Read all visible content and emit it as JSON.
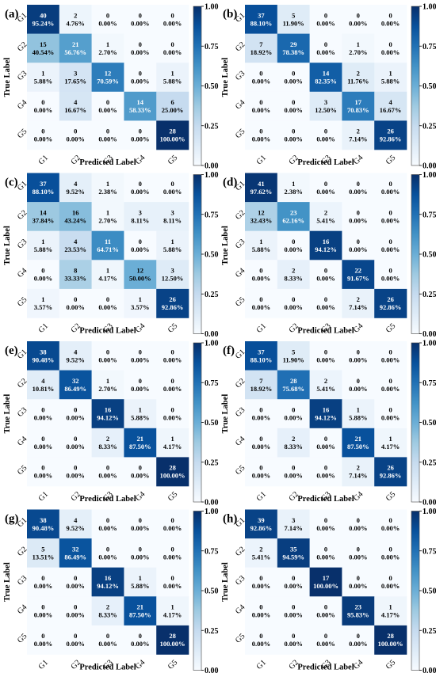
{
  "chart_data": [
    {
      "type": "heatmap",
      "panel_label": "(a)",
      "xlabel": "Predicted Label",
      "ylabel": "True Label",
      "x_categories": [
        "G1",
        "G2",
        "G3",
        "G4",
        "G5"
      ],
      "y_categories": [
        "G1",
        "G2",
        "G3",
        "G4",
        "G5"
      ],
      "counts": [
        [
          40,
          2,
          0,
          0,
          0
        ],
        [
          15,
          21,
          1,
          0,
          0
        ],
        [
          1,
          3,
          12,
          0,
          1
        ],
        [
          0,
          4,
          0,
          14,
          6
        ],
        [
          0,
          0,
          0,
          0,
          28
        ]
      ],
      "percentages": [
        [
          "95.24%",
          "4.76%",
          "0.00%",
          "0.00%",
          "0.00%"
        ],
        [
          "40.54%",
          "56.76%",
          "2.70%",
          "0.00%",
          "0.00%"
        ],
        [
          "5.88%",
          "17.65%",
          "70.59%",
          "0.00%",
          "5.88%"
        ],
        [
          "0.00%",
          "16.67%",
          "0.00%",
          "58.33%",
          "25.00%"
        ],
        [
          "0.00%",
          "0.00%",
          "0.00%",
          "0.00%",
          "100.00%"
        ]
      ],
      "colorbar": {
        "range": [
          0,
          1
        ],
        "ticks": [
          "0.00",
          "0.25",
          "0.50",
          "0.75",
          "1.00"
        ]
      }
    },
    {
      "type": "heatmap",
      "panel_label": "(b)",
      "xlabel": "Predicted Label",
      "ylabel": "True Label",
      "x_categories": [
        "G1",
        "G2",
        "G3",
        "G4",
        "G5"
      ],
      "y_categories": [
        "G1",
        "G2",
        "G3",
        "G4",
        "G5"
      ],
      "counts": [
        [
          37,
          5,
          0,
          0,
          0
        ],
        [
          7,
          29,
          0,
          1,
          0
        ],
        [
          0,
          0,
          14,
          2,
          1
        ],
        [
          0,
          0,
          3,
          17,
          4
        ],
        [
          0,
          0,
          0,
          2,
          26
        ]
      ],
      "percentages": [
        [
          "88.10%",
          "11.90%",
          "0.00%",
          "0.00%",
          "0.00%"
        ],
        [
          "18.92%",
          "78.38%",
          "0.00%",
          "2.70%",
          "0.00%"
        ],
        [
          "0.00%",
          "0.00%",
          "82.35%",
          "11.76%",
          "5.88%"
        ],
        [
          "0.00%",
          "0.00%",
          "12.50%",
          "70.83%",
          "16.67%"
        ],
        [
          "0.00%",
          "0.00%",
          "0.00%",
          "7.14%",
          "92.86%"
        ]
      ],
      "colorbar": {
        "range": [
          0,
          1
        ],
        "ticks": [
          "0.00",
          "0.25",
          "0.50",
          "0.75",
          "1.00"
        ]
      }
    },
    {
      "type": "heatmap",
      "panel_label": "(c)",
      "xlabel": "Predicted Label",
      "ylabel": "True Label",
      "x_categories": [
        "G1",
        "G2",
        "G3",
        "G4",
        "G5"
      ],
      "y_categories": [
        "G1",
        "G2",
        "G3",
        "G4",
        "G5"
      ],
      "counts": [
        [
          37,
          4,
          1,
          0,
          0
        ],
        [
          14,
          16,
          1,
          3,
          3
        ],
        [
          1,
          4,
          11,
          0,
          1
        ],
        [
          0,
          8,
          1,
          12,
          3
        ],
        [
          1,
          0,
          0,
          1,
          26
        ]
      ],
      "percentages": [
        [
          "88.10%",
          "9.52%",
          "2.38%",
          "0.00%",
          "0.00%"
        ],
        [
          "37.84%",
          "43.24%",
          "2.70%",
          "8.11%",
          "8.11%"
        ],
        [
          "5.88%",
          "23.53%",
          "64.71%",
          "0.00%",
          "5.88%"
        ],
        [
          "0.00%",
          "33.33%",
          "4.17%",
          "50.00%",
          "12.50%"
        ],
        [
          "3.57%",
          "0.00%",
          "0.00%",
          "3.57%",
          "92.86%"
        ]
      ],
      "colorbar": {
        "range": [
          0,
          1
        ],
        "ticks": [
          "0.00",
          "0.25",
          "0.50",
          "0.75",
          "1.00"
        ]
      }
    },
    {
      "type": "heatmap",
      "panel_label": "(d)",
      "xlabel": "Predicted Label",
      "ylabel": "True Label",
      "x_categories": [
        "G1",
        "G2",
        "G3",
        "G4",
        "G5"
      ],
      "y_categories": [
        "G1",
        "G2",
        "G3",
        "G4",
        "G5"
      ],
      "counts": [
        [
          41,
          1,
          0,
          0,
          0
        ],
        [
          12,
          23,
          2,
          0,
          0
        ],
        [
          1,
          0,
          16,
          0,
          0
        ],
        [
          0,
          2,
          0,
          22,
          0
        ],
        [
          0,
          0,
          0,
          2,
          26
        ]
      ],
      "percentages": [
        [
          "97.62%",
          "2.38%",
          "0.00%",
          "0.00%",
          "0.00%"
        ],
        [
          "32.43%",
          "62.16%",
          "5.41%",
          "0.00%",
          "0.00%"
        ],
        [
          "5.88%",
          "0.00%",
          "94.12%",
          "0.00%",
          "0.00%"
        ],
        [
          "0.00%",
          "8.33%",
          "0.00%",
          "91.67%",
          "0.00%"
        ],
        [
          "0.00%",
          "0.00%",
          "0.00%",
          "7.14%",
          "92.86%"
        ]
      ],
      "colorbar": {
        "range": [
          0,
          1
        ],
        "ticks": [
          "0.00",
          "0.25",
          "0.50",
          "0.75",
          "1.00"
        ]
      }
    },
    {
      "type": "heatmap",
      "panel_label": "(e)",
      "xlabel": "Predicted Label",
      "ylabel": "True Label",
      "x_categories": [
        "G1",
        "G2",
        "G3",
        "G4",
        "G5"
      ],
      "y_categories": [
        "G1",
        "G2",
        "G3",
        "G4",
        "G5"
      ],
      "counts": [
        [
          38,
          4,
          0,
          0,
          0
        ],
        [
          4,
          32,
          1,
          0,
          0
        ],
        [
          0,
          0,
          16,
          1,
          0
        ],
        [
          0,
          0,
          2,
          21,
          1
        ],
        [
          0,
          0,
          0,
          0,
          28
        ]
      ],
      "percentages": [
        [
          "90.48%",
          "9.52%",
          "0.00%",
          "0.00%",
          "0.00%"
        ],
        [
          "10.81%",
          "86.49%",
          "2.70%",
          "0.00%",
          "0.00%"
        ],
        [
          "0.00%",
          "0.00%",
          "94.12%",
          "5.88%",
          "0.00%"
        ],
        [
          "0.00%",
          "0.00%",
          "8.33%",
          "87.50%",
          "4.17%"
        ],
        [
          "0.00%",
          "0.00%",
          "0.00%",
          "0.00%",
          "100.00%"
        ]
      ],
      "colorbar": {
        "range": [
          0,
          1
        ],
        "ticks": [
          "0.00",
          "0.25",
          "0.50",
          "0.75",
          "1.00"
        ]
      }
    },
    {
      "type": "heatmap",
      "panel_label": "(f)",
      "xlabel": "Predicted Label",
      "ylabel": "True Label",
      "x_categories": [
        "G1",
        "G2",
        "G3",
        "G4",
        "G5"
      ],
      "y_categories": [
        "G1",
        "G2",
        "G3",
        "G4",
        "G5"
      ],
      "counts": [
        [
          37,
          5,
          0,
          0,
          0
        ],
        [
          7,
          28,
          2,
          0,
          0
        ],
        [
          0,
          0,
          16,
          1,
          0
        ],
        [
          0,
          2,
          0,
          21,
          1
        ],
        [
          0,
          0,
          0,
          2,
          26
        ]
      ],
      "percentages": [
        [
          "88.10%",
          "11.90%",
          "0.00%",
          "0.00%",
          "0.00%"
        ],
        [
          "18.92%",
          "75.68%",
          "5.41%",
          "0.00%",
          "0.00%"
        ],
        [
          "0.00%",
          "0.00%",
          "94.12%",
          "5.88%",
          "0.00%"
        ],
        [
          "0.00%",
          "8.33%",
          "0.00%",
          "87.50%",
          "4.17%"
        ],
        [
          "0.00%",
          "0.00%",
          "0.00%",
          "7.14%",
          "92.86%"
        ]
      ],
      "colorbar": {
        "range": [
          0,
          1
        ],
        "ticks": [
          "0.00",
          "0.25",
          "0.50",
          "0.75",
          "1.00"
        ]
      }
    },
    {
      "type": "heatmap",
      "panel_label": "(g)",
      "xlabel": "Predicted Label",
      "ylabel": "True Label",
      "x_categories": [
        "G1",
        "G2",
        "G3",
        "G4",
        "G5"
      ],
      "y_categories": [
        "G1",
        "G2",
        "G3",
        "G4",
        "G5"
      ],
      "counts": [
        [
          38,
          4,
          0,
          0,
          0
        ],
        [
          5,
          32,
          0,
          0,
          0
        ],
        [
          0,
          0,
          16,
          1,
          0
        ],
        [
          0,
          0,
          2,
          21,
          1
        ],
        [
          0,
          0,
          0,
          0,
          28
        ]
      ],
      "percentages": [
        [
          "90.48%",
          "9.52%",
          "0.00%",
          "0.00%",
          "0.00%"
        ],
        [
          "13.51%",
          "86.49%",
          "0.00%",
          "0.00%",
          "0.00%"
        ],
        [
          "0.00%",
          "0.00%",
          "94.12%",
          "5.88%",
          "0.00%"
        ],
        [
          "0.00%",
          "0.00%",
          "8.33%",
          "87.50%",
          "4.17%"
        ],
        [
          "0.00%",
          "0.00%",
          "0.00%",
          "0.00%",
          "100.00%"
        ]
      ],
      "colorbar": {
        "range": [
          0,
          1
        ],
        "ticks": [
          "0.00",
          "0.25",
          "0.50",
          "0.75",
          "1.00"
        ]
      }
    },
    {
      "type": "heatmap",
      "panel_label": "(h)",
      "xlabel": "Predicted Label",
      "ylabel": "True Label",
      "x_categories": [
        "G1",
        "G2",
        "G3",
        "G4",
        "G5"
      ],
      "y_categories": [
        "G1",
        "G2",
        "G3",
        "G4",
        "G5"
      ],
      "counts": [
        [
          39,
          3,
          0,
          0,
          0
        ],
        [
          2,
          35,
          0,
          0,
          0
        ],
        [
          0,
          0,
          17,
          0,
          0
        ],
        [
          0,
          0,
          0,
          23,
          1
        ],
        [
          0,
          0,
          0,
          0,
          28
        ]
      ],
      "percentages": [
        [
          "92.86%",
          "7.14%",
          "0.00%",
          "0.00%",
          "0.00%"
        ],
        [
          "5.41%",
          "94.59%",
          "0.00%",
          "0.00%",
          "0.00%"
        ],
        [
          "0.00%",
          "0.00%",
          "100.00%",
          "0.00%",
          "0.00%"
        ],
        [
          "0.00%",
          "0.00%",
          "0.00%",
          "95.83%",
          "4.17%"
        ],
        [
          "0.00%",
          "0.00%",
          "0.00%",
          "0.00%",
          "100.00%"
        ]
      ],
      "colorbar": {
        "range": [
          0,
          1
        ],
        "ticks": [
          "0.00",
          "0.25",
          "0.50",
          "0.75",
          "1.00"
        ]
      }
    }
  ],
  "colormap": {
    "name": "Blues",
    "low": "#f7fbff",
    "high": "#08306b"
  }
}
